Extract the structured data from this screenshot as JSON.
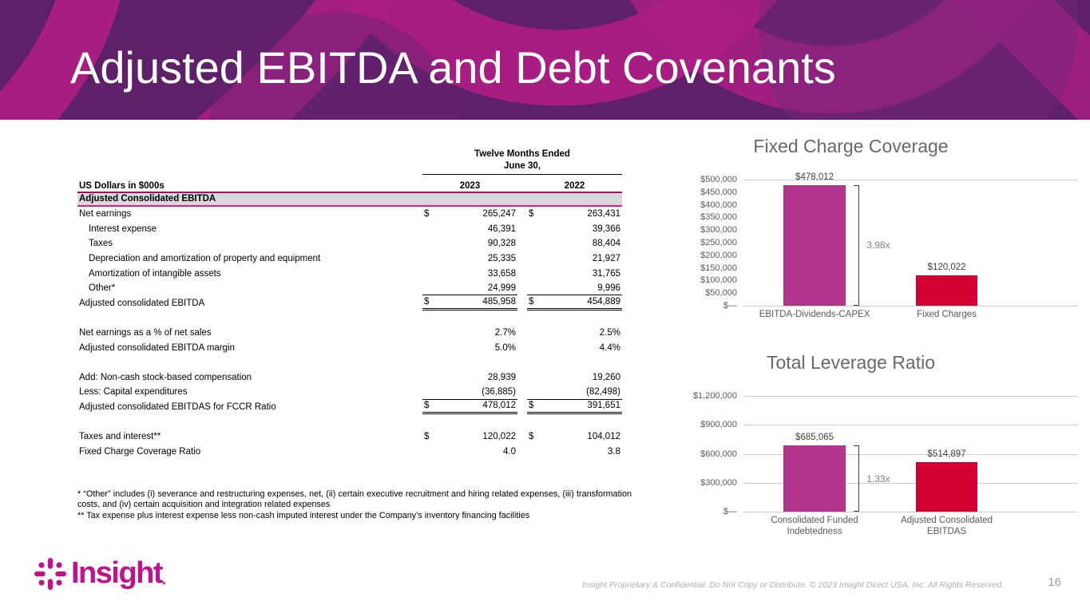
{
  "slide": {
    "title": "Adjusted EBITDA and Debt Covenants",
    "page_number": "16",
    "footer_text": "Insight Proprietary & Confidential. Do Not Copy or Distribute. © 2023 Insight Direct USA, Inc. All Rights Reserved.",
    "logo": {
      "text": "Insight",
      "mark": "."
    }
  },
  "table": {
    "unit_label": "US Dollars in $000s",
    "period_header": "Twelve Months Ended\nJune 30,",
    "year_columns": [
      "2023",
      "2022"
    ],
    "section_header": "Adjusted Consolidated EBITDA",
    "rows": [
      {
        "label": "Net earnings",
        "dollar": true,
        "v1": "265,247",
        "v2": "263,431"
      },
      {
        "label": "Interest expense",
        "indent": true,
        "v1": "46,391",
        "v2": "39,366"
      },
      {
        "label": "Taxes",
        "indent": true,
        "v1": "90,328",
        "v2": "88,404"
      },
      {
        "label": "Depreciation and amortization of property and equipment",
        "indent": true,
        "v1": "25,335",
        "v2": "21,927"
      },
      {
        "label": "Amortization of intangible assets",
        "indent": true,
        "v1": "33,658",
        "v2": "31,765"
      },
      {
        "label": "Other*",
        "indent": true,
        "v1": "24,999",
        "v2": "9,996",
        "underline": "single"
      },
      {
        "label": "Adjusted consolidated EBITDA",
        "dollar": true,
        "v1": "485,958",
        "v2": "454,889",
        "underline": "double"
      },
      {
        "spacer": true
      },
      {
        "label": "Net earnings as a % of net sales",
        "v1": "2.7%",
        "v2": "2.5%"
      },
      {
        "label": "Adjusted consolidated EBITDA margin",
        "v1": "5.0%",
        "v2": "4.4%"
      },
      {
        "spacer": true
      },
      {
        "label": "Add: Non-cash stock-based compensation",
        "v1": "28,939",
        "v2": "19,260"
      },
      {
        "label": "Less: Capital expenditures",
        "v1": "(36,885)",
        "v2": "(82,498)",
        "underline": "single"
      },
      {
        "label": "Adjusted consolidated EBITDAS for FCCR Ratio",
        "dollar": true,
        "v1": "478,012",
        "v2": "391,651",
        "underline": "double"
      },
      {
        "spacer": true
      },
      {
        "label": "Taxes and interest**",
        "dollar": true,
        "v1": "120,022",
        "v2": "104,012"
      },
      {
        "label": "Fixed Charge Coverage Ratio",
        "v1": "4.0",
        "v2": "3.8"
      }
    ],
    "footnotes": [
      "* “Other” includes (i) severance and restructuring expenses, net, (ii) certain executive recruitment and hiring related expenses, (iii) transformation costs, and (iv) certain acquisition and integration related expenses",
      "** Tax expense plus interest expense less non-cash imputed interest under the Company’s inventory financing facilities"
    ]
  },
  "chart_data": [
    {
      "type": "bar",
      "title": "Fixed Charge Coverage",
      "categories": [
        "EBITDA-Dividends-CAPEX",
        "Fixed Charges"
      ],
      "values": [
        478012,
        120022
      ],
      "value_labels": [
        "$478,012",
        "$120,022"
      ],
      "bar_colors": [
        "#B2348C",
        "#D50032"
      ],
      "ratio_label": "3.98x",
      "ylim": [
        0,
        500000
      ],
      "ytick_labels": [
        "$500,000",
        "$450,000",
        "$400,000",
        "$350,000",
        "$300,000",
        "$250,000",
        "$200,000",
        "$150,000",
        "$100,000",
        "$50,000",
        "$—"
      ],
      "gridlines": "ends",
      "legend": "none"
    },
    {
      "type": "bar",
      "title": "Total Leverage Ratio",
      "categories": [
        "Consolidated Funded Indebtedness",
        "Adjusted Consolidated EBITDAS"
      ],
      "values": [
        685065,
        514897
      ],
      "value_labels": [
        "$685,065",
        "$514,897"
      ],
      "bar_colors": [
        "#B2348C",
        "#D50032"
      ],
      "ratio_label": "1.33x",
      "ylim": [
        0,
        1200000
      ],
      "ytick_labels": [
        "$1,200,000",
        "$900,000",
        "$600,000",
        "$300,000",
        "$—"
      ],
      "gridlines": "all",
      "legend": "none"
    }
  ],
  "colors": {
    "header_purple": "#5E2069",
    "swoosh_magenta": "#AB1E84",
    "bar_magenta": "#B2348C",
    "bar_red": "#D50032",
    "brand_magenta": "#C2118C",
    "section_row_bg": "#D9D9D9"
  }
}
